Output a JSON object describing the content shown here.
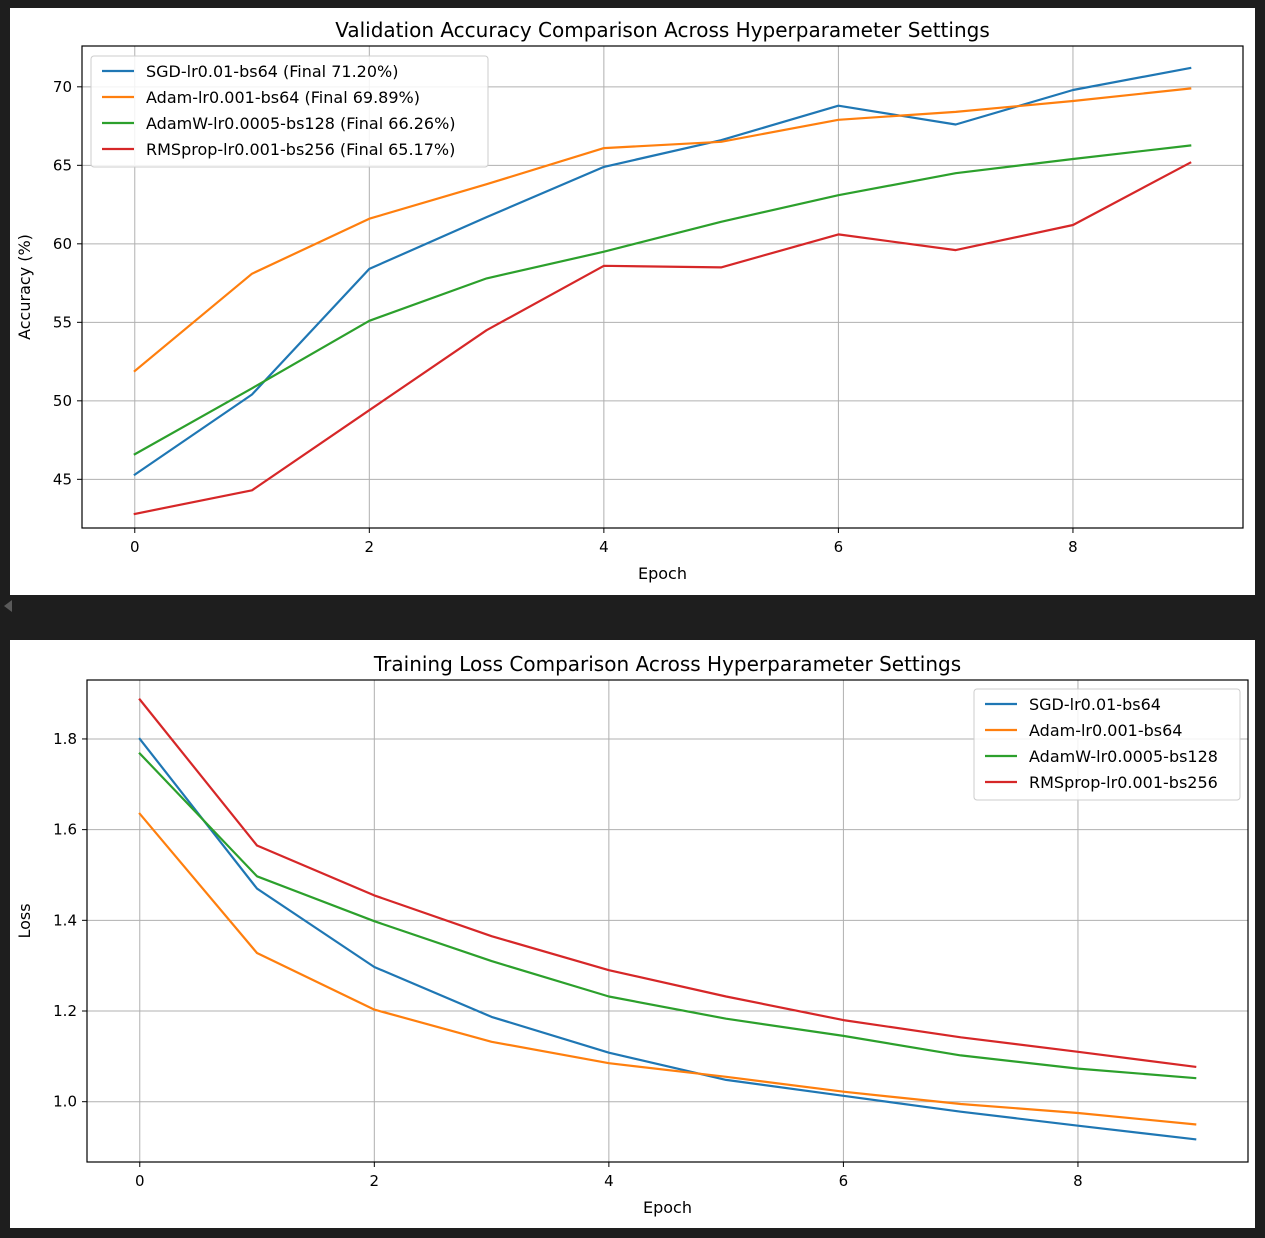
{
  "colors": {
    "series": [
      "#1f77b4",
      "#ff7f0e",
      "#2ca02c",
      "#d62728"
    ],
    "grid": "#b0b0b0",
    "background": "#1e1e1e"
  },
  "chart_data": [
    {
      "type": "line",
      "title": "Validation Accuracy Comparison Across Hyperparameter Settings",
      "xlabel": "Epoch",
      "ylabel": "Accuracy (%)",
      "x": [
        0,
        1,
        2,
        3,
        4,
        5,
        6,
        7,
        8,
        9
      ],
      "xlim": [
        -0.45,
        9.45
      ],
      "ylim": [
        41.9,
        72.6
      ],
      "xticks": [
        0,
        2,
        4,
        6,
        8
      ],
      "yticks": [
        45,
        50,
        55,
        60,
        65,
        70
      ],
      "grid": true,
      "legend_loc": "top-left",
      "series": [
        {
          "name": "SGD-lr0.01-bs64 (Final 71.20%)",
          "values": [
            45.3,
            50.4,
            58.4,
            61.7,
            64.9,
            66.6,
            68.8,
            67.6,
            69.8,
            71.2
          ]
        },
        {
          "name": "Adam-lr0.001-bs64 (Final 69.89%)",
          "values": [
            51.9,
            58.1,
            61.6,
            63.8,
            66.1,
            66.5,
            67.9,
            68.4,
            69.1,
            69.89
          ]
        },
        {
          "name": "AdamW-lr0.0005-bs128 (Final 66.26%)",
          "values": [
            46.6,
            50.8,
            55.1,
            57.8,
            59.5,
            61.4,
            63.1,
            64.5,
            65.4,
            66.26
          ]
        },
        {
          "name": "RMSprop-lr0.001-bs256 (Final 65.17%)",
          "values": [
            42.8,
            44.3,
            49.4,
            54.5,
            58.6,
            58.5,
            60.6,
            59.6,
            61.2,
            65.17
          ]
        }
      ]
    },
    {
      "type": "line",
      "title": "Training Loss Comparison Across Hyperparameter Settings",
      "xlabel": "Epoch",
      "ylabel": "Loss",
      "x": [
        0,
        1,
        2,
        3,
        4,
        5,
        6,
        7,
        8,
        9
      ],
      "xlim": [
        -0.45,
        9.45
      ],
      "ylim": [
        0.867,
        1.93
      ],
      "xticks": [
        0,
        2,
        4,
        6,
        8
      ],
      "yticks": [
        "1.0",
        "1.2",
        "1.4",
        "1.6",
        "1.8"
      ],
      "grid": true,
      "legend_loc": "top-right",
      "series": [
        {
          "name": "SGD-lr0.01-bs64",
          "values": [
            1.8,
            1.47,
            1.297,
            1.187,
            1.108,
            1.048,
            1.013,
            0.978,
            0.947,
            0.917
          ]
        },
        {
          "name": "Adam-lr0.001-bs64",
          "values": [
            1.635,
            1.328,
            1.203,
            1.132,
            1.085,
            1.055,
            1.022,
            0.995,
            0.975,
            0.95
          ]
        },
        {
          "name": "AdamW-lr0.0005-bs128",
          "values": [
            1.768,
            1.497,
            1.398,
            1.31,
            1.232,
            1.183,
            1.145,
            1.102,
            1.073,
            1.052
          ]
        },
        {
          "name": "RMSprop-lr0.001-bs256",
          "values": [
            1.887,
            1.565,
            1.455,
            1.365,
            1.29,
            1.232,
            1.18,
            1.142,
            1.11,
            1.077
          ]
        }
      ]
    }
  ]
}
